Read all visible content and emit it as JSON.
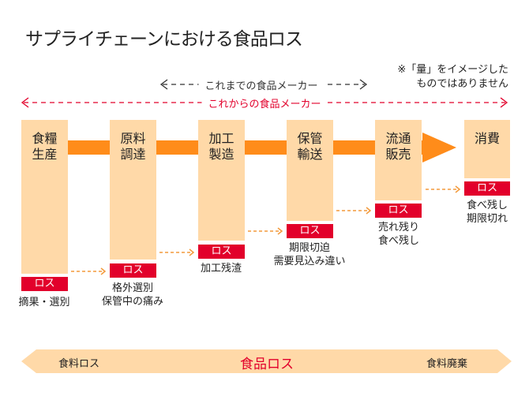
{
  "title": "サプライチェーンにおける食品ロス",
  "note": [
    "※「量」をイメージした",
    "ものではありません"
  ],
  "ranges": {
    "current": {
      "label": "これまでの食品メーカー",
      "color": "#333333"
    },
    "future": {
      "label": "これからの食品メーカー",
      "color": "#E2002B"
    }
  },
  "stages": [
    {
      "label": [
        "食糧",
        "生産"
      ],
      "loss_badge": "ロス",
      "loss_desc": [
        "摘果・選別"
      ]
    },
    {
      "label": [
        "原料",
        "調達"
      ],
      "loss_badge": "ロス",
      "loss_desc": [
        "格外選別",
        "保管中の痛み"
      ]
    },
    {
      "label": [
        "加工",
        "製造"
      ],
      "loss_badge": "ロス",
      "loss_desc": [
        "加工残渣"
      ]
    },
    {
      "label": [
        "保管",
        "輸送"
      ],
      "loss_badge": "ロス",
      "loss_desc": [
        "期限切迫",
        "需要見込み違い"
      ]
    },
    {
      "label": [
        "流通",
        "販売"
      ],
      "loss_badge": "ロス",
      "loss_desc": [
        "売れ残り",
        "食べ残し"
      ]
    },
    {
      "label": [
        "消費"
      ],
      "loss_badge": "ロス",
      "loss_desc": [
        "食べ残し",
        "期限切れ"
      ]
    }
  ],
  "bottom_band": {
    "left": "食料ロス",
    "center": "食品ロス",
    "right": "食料廃棄"
  },
  "colors": {
    "column": "#FFD9A8",
    "flow_arrow": "#FF8C1A",
    "loss": "#E2002B",
    "dashed_arrow": "#F39A3C"
  }
}
